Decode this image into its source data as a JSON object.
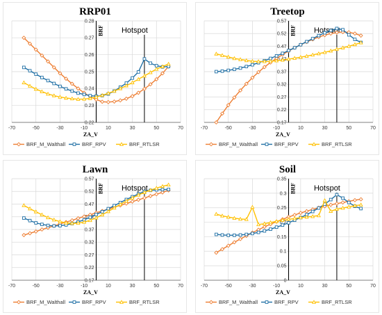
{
  "chart_data": [
    {
      "type": "line",
      "title": "RRP01",
      "xlabel": "ZA_V",
      "ylabel": "BRF",
      "xlim": [
        -70,
        70
      ],
      "ylim": [
        0.22,
        0.28
      ],
      "xticks": [
        "-70",
        "-50",
        "-30",
        "-10",
        "10",
        "30",
        "50",
        "70"
      ],
      "yticks": [
        "0.22",
        "0.23",
        "0.24",
        "0.25",
        "0.26",
        "0.27",
        "0.28"
      ],
      "annotation": "Hotspot",
      "hotspot_x": 40,
      "legend_position": "bottom",
      "x": [
        -60,
        -55,
        -50,
        -45,
        -40,
        -35,
        -30,
        -25,
        -20,
        -15,
        -10,
        -5,
        0,
        5,
        10,
        15,
        20,
        25,
        30,
        35,
        40,
        45,
        50,
        55,
        60
      ],
      "series": [
        {
          "name": "BRF_M_Walthall",
          "color": "#ED7D31",
          "marker": "diamond",
          "values": [
            0.27,
            0.2665,
            0.263,
            0.2595,
            0.256,
            0.2525,
            0.249,
            0.2458,
            0.2428,
            0.24,
            0.2375,
            0.2352,
            0.2335,
            0.2322,
            0.232,
            0.2323,
            0.233,
            0.234,
            0.2355,
            0.2375,
            0.2398,
            0.2425,
            0.2455,
            0.249,
            0.253
          ]
        },
        {
          "name": "BRF_RPV",
          "color": "#1F6FA5",
          "marker": "square",
          "values": [
            0.2525,
            0.2505,
            0.2485,
            0.2465,
            0.2447,
            0.243,
            0.2413,
            0.2398,
            0.2385,
            0.2373,
            0.2365,
            0.2358,
            0.2355,
            0.2358,
            0.2368,
            0.2385,
            0.2408,
            0.2432,
            0.2462,
            0.2498,
            0.2575,
            0.255,
            0.2535,
            0.2528,
            0.253
          ]
        },
        {
          "name": "BRF_RTLSR",
          "color": "#FFC000",
          "marker": "triangle",
          "values": [
            0.2435,
            0.2415,
            0.2397,
            0.2382,
            0.2368,
            0.2358,
            0.235,
            0.2344,
            0.234,
            0.2337,
            0.2338,
            0.2342,
            0.235,
            0.236,
            0.2372,
            0.2385,
            0.24,
            0.2417,
            0.2435,
            0.2455,
            0.2475,
            0.2495,
            0.2515,
            0.253,
            0.2545
          ]
        }
      ]
    },
    {
      "type": "line",
      "title": "Treetop",
      "xlabel": "ZA_V",
      "ylabel": "BRF",
      "xlim": [
        -70,
        70
      ],
      "ylim": [
        0.17,
        0.57
      ],
      "xticks": [
        "-70",
        "-50",
        "-30",
        "-10",
        "10",
        "30",
        "50",
        "70"
      ],
      "yticks": [
        "0.17",
        "0.22",
        "0.27",
        "0.32",
        "0.37",
        "0.42",
        "0.47",
        "0.52",
        "0.57"
      ],
      "annotation": "Hotspot",
      "hotspot_x": 40,
      "legend_position": "bottom",
      "x": [
        -60,
        -55,
        -50,
        -45,
        -40,
        -35,
        -30,
        -25,
        -20,
        -15,
        -10,
        -5,
        0,
        5,
        10,
        15,
        20,
        25,
        30,
        35,
        40,
        45,
        50,
        55,
        60
      ],
      "series": [
        {
          "name": "BRF_M_Walthall",
          "color": "#ED7D31",
          "marker": "diamond",
          "values": [
            0.17,
            0.205,
            0.238,
            0.268,
            0.296,
            0.322,
            0.346,
            0.368,
            0.388,
            0.406,
            0.422,
            0.437,
            0.451,
            0.464,
            0.476,
            0.487,
            0.497,
            0.506,
            0.514,
            0.52,
            0.524,
            0.526,
            0.525,
            0.52,
            0.512
          ]
        },
        {
          "name": "BRF_RPV",
          "color": "#1F6FA5",
          "marker": "square",
          "values": [
            0.37,
            0.372,
            0.375,
            0.379,
            0.384,
            0.39,
            0.397,
            0.405,
            0.413,
            0.422,
            0.432,
            0.442,
            0.453,
            0.464,
            0.476,
            0.488,
            0.5,
            0.512,
            0.523,
            0.532,
            0.54,
            0.535,
            0.515,
            0.497,
            0.485
          ]
        },
        {
          "name": "BRF_RTLSR",
          "color": "#FFC000",
          "marker": "triangle",
          "values": [
            0.44,
            0.434,
            0.428,
            0.422,
            0.418,
            0.414,
            0.411,
            0.41,
            0.41,
            0.411,
            0.413,
            0.416,
            0.419,
            0.423,
            0.427,
            0.431,
            0.436,
            0.441,
            0.446,
            0.452,
            0.458,
            0.464,
            0.47,
            0.477,
            0.484
          ]
        }
      ]
    },
    {
      "type": "line",
      "title": "Lawn",
      "xlabel": "ZA_V",
      "ylabel": "BRF",
      "xlim": [
        -70,
        70
      ],
      "ylim": [
        0.17,
        0.57
      ],
      "xticks": [
        "-70",
        "-50",
        "-30",
        "-10",
        "10",
        "30",
        "50",
        "70"
      ],
      "yticks": [
        "0.17",
        "0.22",
        "0.27",
        "0.32",
        "0.37",
        "0.42",
        "0.47",
        "0.52",
        "0.57"
      ],
      "annotation": "Hotspot",
      "hotspot_x": 40,
      "legend_position": "bottom",
      "x": [
        -60,
        -55,
        -50,
        -45,
        -40,
        -35,
        -30,
        -25,
        -20,
        -15,
        -10,
        -5,
        0,
        5,
        10,
        15,
        20,
        25,
        30,
        35,
        40,
        45,
        50,
        55,
        60
      ],
      "series": [
        {
          "name": "BRF_M_Walthall",
          "color": "#ED7D31",
          "marker": "diamond",
          "values": [
            0.348,
            0.355,
            0.362,
            0.37,
            0.377,
            0.384,
            0.392,
            0.399,
            0.406,
            0.414,
            0.421,
            0.428,
            0.436,
            0.443,
            0.45,
            0.458,
            0.465,
            0.472,
            0.48,
            0.487,
            0.494,
            0.502,
            0.509,
            0.516,
            0.524
          ]
        },
        {
          "name": "BRF_RPV",
          "color": "#1F6FA5",
          "marker": "square",
          "values": [
            0.415,
            0.405,
            0.396,
            0.39,
            0.386,
            0.384,
            0.385,
            0.388,
            0.393,
            0.4,
            0.408,
            0.418,
            0.429,
            0.44,
            0.452,
            0.464,
            0.476,
            0.488,
            0.499,
            0.51,
            0.52,
            0.524,
            0.526,
            0.527,
            0.528
          ]
        },
        {
          "name": "BRF_RTLSR",
          "color": "#FFC000",
          "marker": "triangle",
          "values": [
            0.465,
            0.452,
            0.44,
            0.428,
            0.417,
            0.408,
            0.401,
            0.396,
            0.394,
            0.395,
            0.399,
            0.406,
            0.416,
            0.428,
            0.441,
            0.455,
            0.469,
            0.482,
            0.494,
            0.506,
            0.516,
            0.525,
            0.533,
            0.54,
            0.546
          ]
        }
      ]
    },
    {
      "type": "line",
      "title": "Soil",
      "xlabel": "ZA_V",
      "ylabel": "BRF",
      "xlim": [
        -70,
        70
      ],
      "ylim": [
        0,
        0.35
      ],
      "xticks": [
        "-70",
        "-50",
        "-30",
        "-10",
        "10",
        "30",
        "50",
        "70"
      ],
      "yticks": [
        "0",
        "0.05",
        "0.1",
        "0.15",
        "0.2",
        "0.25",
        "0.3",
        "0.35"
      ],
      "annotation": "Hotspot",
      "hotspot_x": 40,
      "legend_position": "bottom",
      "x": [
        -60,
        -55,
        -50,
        -45,
        -40,
        -35,
        -30,
        -25,
        -20,
        -15,
        -10,
        -5,
        0,
        5,
        10,
        15,
        20,
        25,
        30,
        35,
        40,
        45,
        50,
        55,
        60
      ],
      "series": [
        {
          "name": "BRF_M_Walthall",
          "color": "#ED7D31",
          "marker": "diamond",
          "values": [
            0.095,
            0.107,
            0.119,
            0.131,
            0.142,
            0.153,
            0.164,
            0.174,
            0.184,
            0.193,
            0.202,
            0.21,
            0.218,
            0.225,
            0.232,
            0.238,
            0.244,
            0.25,
            0.255,
            0.26,
            0.264,
            0.268,
            0.272,
            0.276,
            0.279
          ]
        },
        {
          "name": "BRF_RPV",
          "color": "#1F6FA5",
          "marker": "square",
          "values": [
            0.158,
            0.156,
            0.155,
            0.155,
            0.156,
            0.158,
            0.161,
            0.165,
            0.17,
            0.176,
            0.183,
            0.19,
            0.198,
            0.207,
            0.216,
            0.226,
            0.237,
            0.249,
            0.262,
            0.278,
            0.295,
            0.283,
            0.268,
            0.255,
            0.247
          ]
        },
        {
          "name": "BRF_RTLSR",
          "color": "#FFC000",
          "marker": "triangle",
          "values": [
            0.228,
            0.222,
            0.218,
            0.214,
            0.211,
            0.21,
            0.252,
            0.192,
            0.195,
            0.199,
            0.203,
            0.207,
            0.21,
            0.213,
            0.216,
            0.218,
            0.22,
            0.223,
            0.275,
            0.238,
            0.245,
            0.249,
            0.253,
            0.257,
            0.26
          ]
        }
      ]
    }
  ]
}
